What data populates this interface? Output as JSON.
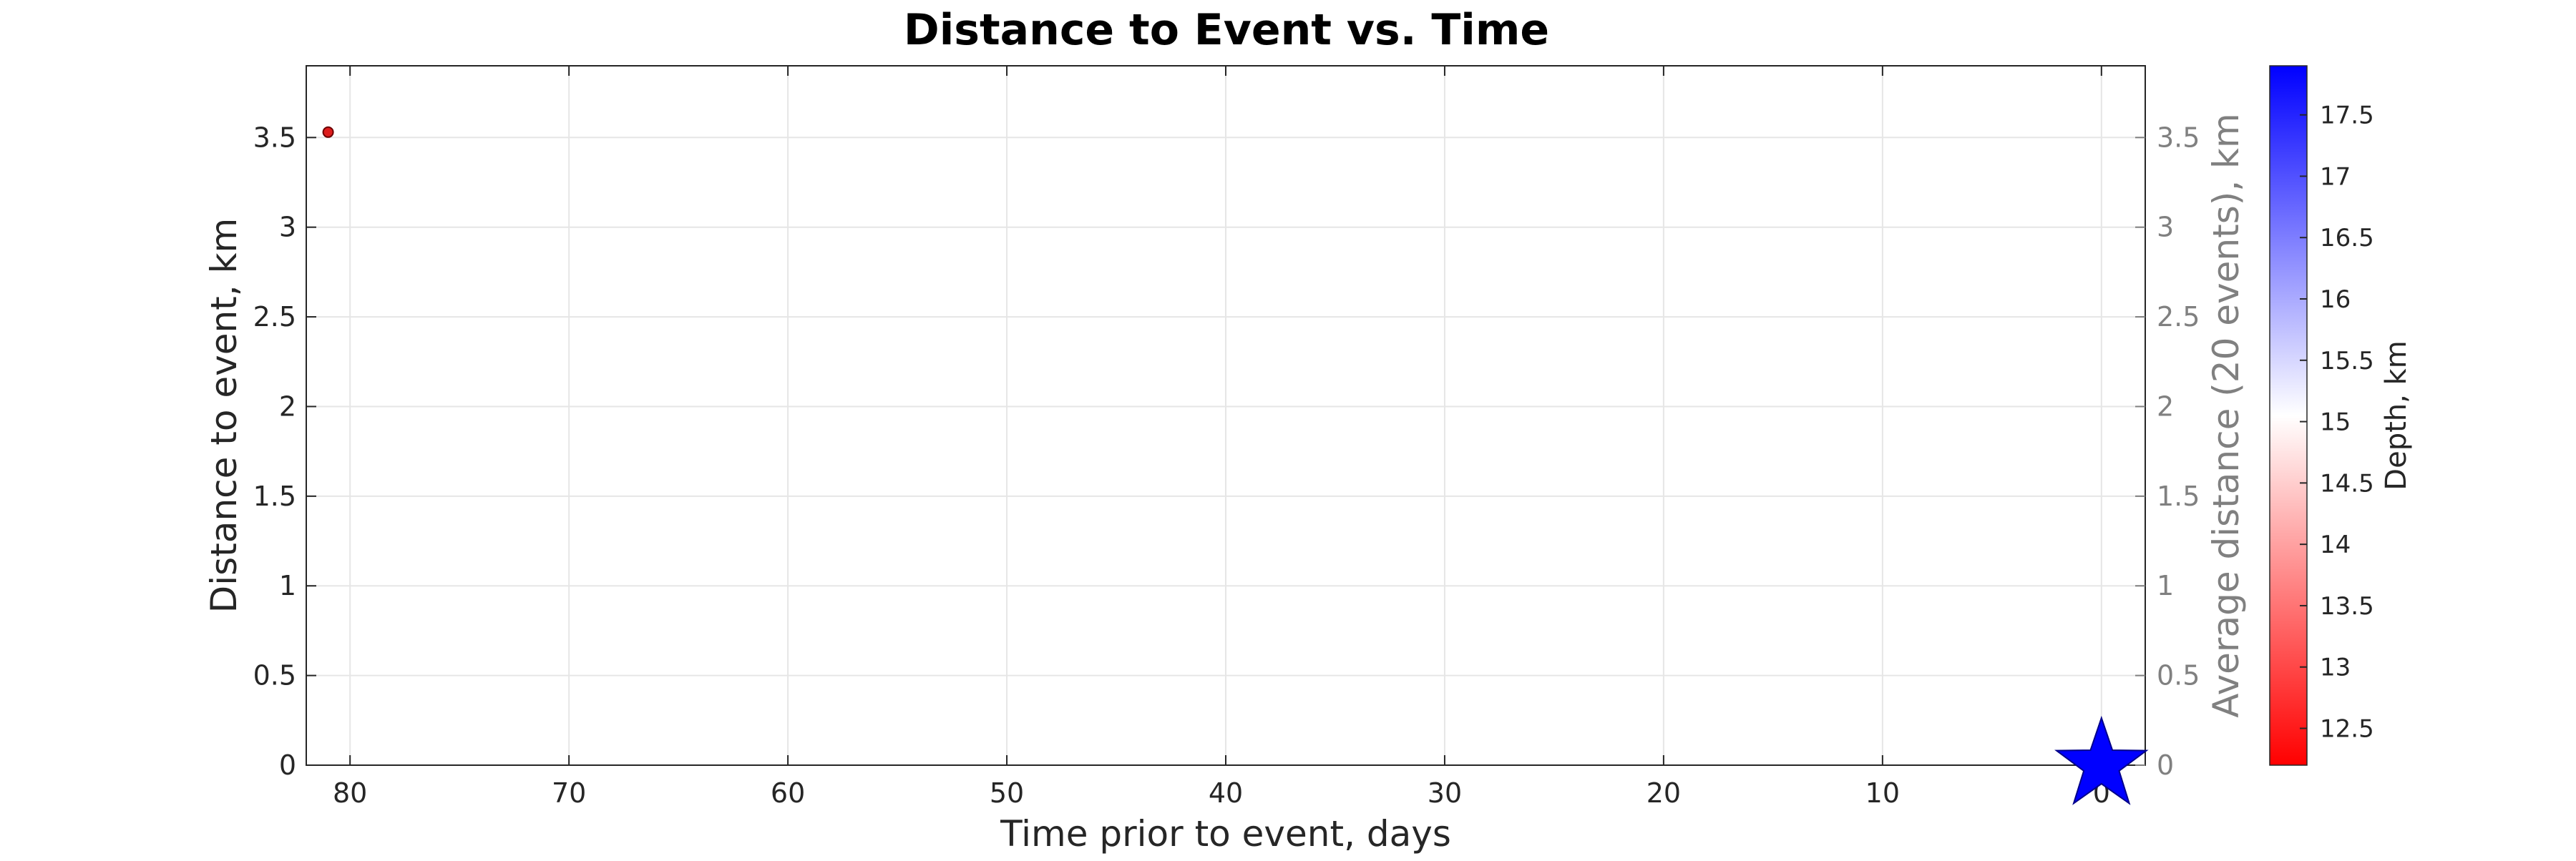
{
  "chart_data": {
    "type": "scatter",
    "title": "Distance to Event vs. Time",
    "xlabel": "Time prior to event, days",
    "ylabel": "Distance to event, km",
    "y2label": "Average distance (20 events), km",
    "colorbar_label": "Depth, km",
    "x_reversed": true,
    "xlim": [
      -2,
      82
    ],
    "ylim": [
      0,
      3.9
    ],
    "x_ticks": [
      80,
      70,
      60,
      50,
      40,
      30,
      20,
      10,
      0
    ],
    "y_ticks": [
      0,
      0.5,
      1,
      1.5,
      2,
      2.5,
      3,
      3.5
    ],
    "y_tick_labels": [
      "0",
      "0.5",
      "1",
      "1.5",
      "2",
      "2.5",
      "3",
      "3.5"
    ],
    "colorbar_range": [
      12.2,
      17.9
    ],
    "colorbar_ticks": [
      12.5,
      13,
      13.5,
      14,
      14.5,
      15,
      15.5,
      16,
      16.5,
      17,
      17.5
    ],
    "colorbar_tick_labels": [
      "12.5",
      "13",
      "13.5",
      "14",
      "14.5",
      "15",
      "15.5",
      "16",
      "16.5",
      "17",
      "17.5"
    ],
    "colormap": [
      "#ff0000",
      "#ffffff",
      "#0000ff"
    ],
    "grid": true,
    "points": [
      {
        "x": 81,
        "y": 3.53,
        "color": "#dd1c1c"
      }
    ],
    "mainshock": {
      "x": 0,
      "y": 0,
      "marker": "star",
      "color": "#0000ff"
    }
  }
}
